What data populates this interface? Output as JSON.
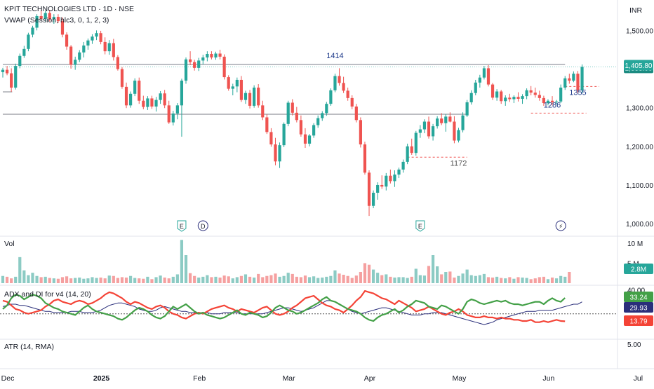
{
  "header": {
    "title": "KPIT TECHNOLOGIES LTD · 1D · NSE",
    "indicator": "VWAP (Session, hlc3, 0, 1, 2, 3)",
    "currency": "INR"
  },
  "panes": {
    "volume": "Vol",
    "adx": "ADX and DI for v4 (14, 20)",
    "atr": "ATR (14, RMA)"
  },
  "colors": {
    "up": "#26a69a",
    "down": "#ef5350",
    "up_vol": "#8ccbc4",
    "down_vol": "#f5a0a0",
    "adx_green": "#43a047",
    "adx_red": "#f44336",
    "adx_navy": "#2a2e7a",
    "level_line": "#787b86",
    "price_badge": "#26a69a"
  },
  "chart_data": {
    "type": "candlestick",
    "price_axis": {
      "ticks": [
        "1,500.00",
        "1,400.00",
        "1,300.00",
        "1,200.00",
        "1,100.00",
        "1,000.00"
      ],
      "tick_values": [
        1500,
        1400,
        1300,
        1200,
        1100,
        1000
      ],
      "ylim": [
        973,
        1575
      ]
    },
    "time_axis": {
      "labels": [
        "Dec",
        "2025",
        "Feb",
        "Mar",
        "Apr",
        "May",
        "Jun",
        "Jul"
      ],
      "label_index": [
        0,
        22,
        45,
        66,
        85,
        106,
        127,
        148
      ]
    },
    "last_price": "1,405.80",
    "second_price": "1,388.00",
    "candles": [
      [
        1392,
        1403,
        1378,
        1398
      ],
      [
        1398,
        1408,
        1384,
        1389
      ],
      [
        1389,
        1402,
        1341,
        1352
      ],
      [
        1352,
        1414,
        1347,
        1408
      ],
      [
        1408,
        1440,
        1402,
        1434
      ],
      [
        1434,
        1460,
        1429,
        1452
      ],
      [
        1452,
        1494,
        1446,
        1489
      ],
      [
        1489,
        1512,
        1482,
        1507
      ],
      [
        1507,
        1542,
        1500,
        1537
      ],
      [
        1537,
        1552,
        1528,
        1530
      ],
      [
        1530,
        1551,
        1523,
        1545
      ],
      [
        1545,
        1553,
        1523,
        1529
      ],
      [
        1529,
        1542,
        1517,
        1535
      ],
      [
        1535,
        1542,
        1519,
        1524
      ],
      [
        1524,
        1534,
        1482,
        1489
      ],
      [
        1489,
        1495,
        1450,
        1458
      ],
      [
        1458,
        1462,
        1401,
        1411
      ],
      [
        1411,
        1432,
        1398,
        1424
      ],
      [
        1424,
        1449,
        1418,
        1443
      ],
      [
        1443,
        1470,
        1430,
        1461
      ],
      [
        1461,
        1479,
        1450,
        1474
      ],
      [
        1474,
        1490,
        1465,
        1484
      ],
      [
        1484,
        1500,
        1475,
        1493
      ],
      [
        1493,
        1499,
        1464,
        1470
      ],
      [
        1470,
        1482,
        1438,
        1446
      ],
      [
        1446,
        1475,
        1437,
        1467
      ],
      [
        1467,
        1478,
        1422,
        1431
      ],
      [
        1431,
        1436,
        1396,
        1400
      ],
      [
        1400,
        1405,
        1349,
        1354
      ],
      [
        1354,
        1365,
        1299,
        1306
      ],
      [
        1306,
        1342,
        1300,
        1336
      ],
      [
        1336,
        1376,
        1330,
        1370
      ],
      [
        1370,
        1378,
        1310,
        1318
      ],
      [
        1318,
        1331,
        1296,
        1302
      ],
      [
        1302,
        1330,
        1294,
        1324
      ],
      [
        1324,
        1331,
        1297,
        1303
      ],
      [
        1303,
        1328,
        1290,
        1320
      ],
      [
        1320,
        1343,
        1310,
        1337
      ],
      [
        1337,
        1346,
        1299,
        1306
      ],
      [
        1306,
        1318,
        1258,
        1262
      ],
      [
        1262,
        1292,
        1254,
        1285
      ],
      [
        1285,
        1312,
        1270,
        1306
      ],
      [
        1306,
        1375,
        1225,
        1370
      ],
      [
        1370,
        1430,
        1362,
        1425
      ],
      [
        1425,
        1446,
        1410,
        1418
      ],
      [
        1418,
        1424,
        1396,
        1403
      ],
      [
        1403,
        1429,
        1395,
        1422
      ],
      [
        1422,
        1437,
        1412,
        1430
      ],
      [
        1430,
        1446,
        1420,
        1439
      ],
      [
        1439,
        1446,
        1425,
        1430
      ],
      [
        1430,
        1445,
        1424,
        1440
      ],
      [
        1440,
        1450,
        1425,
        1432
      ],
      [
        1432,
        1438,
        1373,
        1379
      ],
      [
        1379,
        1384,
        1344,
        1349
      ],
      [
        1349,
        1362,
        1332,
        1355
      ],
      [
        1355,
        1378,
        1340,
        1372
      ],
      [
        1372,
        1382,
        1315,
        1320
      ],
      [
        1320,
        1344,
        1310,
        1338
      ],
      [
        1338,
        1346,
        1298,
        1305
      ],
      [
        1305,
        1358,
        1300,
        1352
      ],
      [
        1352,
        1361,
        1300,
        1306
      ],
      [
        1306,
        1318,
        1268,
        1275
      ],
      [
        1275,
        1283,
        1232,
        1237
      ],
      [
        1237,
        1247,
        1199,
        1205
      ],
      [
        1205,
        1222,
        1151,
        1161
      ],
      [
        1161,
        1210,
        1144,
        1203
      ],
      [
        1203,
        1262,
        1198,
        1258
      ],
      [
        1258,
        1318,
        1252,
        1313
      ],
      [
        1313,
        1322,
        1280,
        1287
      ],
      [
        1287,
        1302,
        1262,
        1268
      ],
      [
        1268,
        1280,
        1225,
        1231
      ],
      [
        1231,
        1247,
        1196,
        1207
      ],
      [
        1207,
        1232,
        1200,
        1228
      ],
      [
        1228,
        1260,
        1222,
        1255
      ],
      [
        1255,
        1280,
        1248,
        1273
      ],
      [
        1273,
        1291,
        1266,
        1286
      ],
      [
        1286,
        1315,
        1279,
        1310
      ],
      [
        1310,
        1350,
        1305,
        1345
      ],
      [
        1345,
        1388,
        1340,
        1382
      ],
      [
        1382,
        1402,
        1357,
        1364
      ],
      [
        1364,
        1380,
        1338,
        1344
      ],
      [
        1344,
        1352,
        1318,
        1325
      ],
      [
        1325,
        1332,
        1296,
        1303
      ],
      [
        1303,
        1310,
        1262,
        1268
      ],
      [
        1268,
        1275,
        1197,
        1205
      ],
      [
        1205,
        1212,
        1127,
        1132
      ],
      [
        1132,
        1138,
        1020,
        1046
      ],
      [
        1046,
        1086,
        1040,
        1080
      ],
      [
        1080,
        1107,
        1062,
        1100
      ],
      [
        1100,
        1125,
        1090,
        1096
      ],
      [
        1096,
        1131,
        1086,
        1124
      ],
      [
        1124,
        1140,
        1104,
        1110
      ],
      [
        1110,
        1138,
        1095,
        1127
      ],
      [
        1127,
        1145,
        1118,
        1140
      ],
      [
        1140,
        1166,
        1132,
        1160
      ],
      [
        1160,
        1207,
        1154,
        1200
      ],
      [
        1200,
        1220,
        1178,
        1183
      ],
      [
        1183,
        1240,
        1176,
        1235
      ],
      [
        1235,
        1255,
        1222,
        1244
      ],
      [
        1244,
        1270,
        1234,
        1264
      ],
      [
        1264,
        1277,
        1220,
        1226
      ],
      [
        1226,
        1258,
        1215,
        1252
      ],
      [
        1252,
        1278,
        1246,
        1272
      ],
      [
        1272,
        1286,
        1255,
        1260
      ],
      [
        1260,
        1283,
        1238,
        1277
      ],
      [
        1277,
        1288,
        1262,
        1264
      ],
      [
        1264,
        1278,
        1208,
        1215
      ],
      [
        1215,
        1248,
        1210,
        1242
      ],
      [
        1242,
        1288,
        1236,
        1280
      ],
      [
        1280,
        1320,
        1276,
        1314
      ],
      [
        1314,
        1345,
        1308,
        1338
      ],
      [
        1338,
        1372,
        1332,
        1365
      ],
      [
        1365,
        1385,
        1352,
        1378
      ],
      [
        1378,
        1408,
        1373,
        1402
      ],
      [
        1402,
        1410,
        1355,
        1360
      ],
      [
        1360,
        1364,
        1320,
        1326
      ],
      [
        1326,
        1348,
        1318,
        1342
      ],
      [
        1342,
        1346,
        1310,
        1317
      ],
      [
        1317,
        1332,
        1305,
        1326
      ],
      [
        1326,
        1336,
        1315,
        1322
      ],
      [
        1322,
        1332,
        1312,
        1328
      ],
      [
        1328,
        1340,
        1316,
        1323
      ],
      [
        1323,
        1335,
        1310,
        1330
      ],
      [
        1330,
        1350,
        1322,
        1345
      ],
      [
        1345,
        1356,
        1332,
        1339
      ],
      [
        1339,
        1352,
        1326,
        1333
      ],
      [
        1333,
        1344,
        1318,
        1325
      ],
      [
        1325,
        1331,
        1305,
        1312
      ],
      [
        1312,
        1322,
        1306,
        1318
      ],
      [
        1318,
        1330,
        1306,
        1314
      ],
      [
        1314,
        1320,
        1308,
        1316
      ],
      [
        1316,
        1360,
        1312,
        1352
      ],
      [
        1352,
        1382,
        1346,
        1376
      ],
      [
        1376,
        1388,
        1362,
        1370
      ],
      [
        1370,
        1394,
        1366,
        1388
      ],
      [
        1388,
        1395,
        1338,
        1345
      ],
      [
        1345,
        1412,
        1338,
        1405.8
      ]
    ],
    "volume": {
      "axis_ticks": [
        "10 M",
        "5 M"
      ],
      "tick_values": [
        10,
        5
      ],
      "max": 11.2,
      "last": "2.8M",
      "values_m": [
        1.8,
        1.6,
        1.2,
        1.6,
        6.5,
        3.2,
        2.0,
        2.6,
        1.8,
        1.5,
        1.6,
        1.3,
        1.2,
        1.1,
        1.5,
        1.7,
        1.2,
        1.3,
        1.4,
        1.1,
        1.2,
        1.5,
        1.3,
        1.4,
        1.2,
        1.9,
        1.8,
        1.3,
        1.5,
        1.4,
        1.8,
        1.3,
        1.2,
        1.1,
        1.6,
        1.0,
        1.5,
        1.9,
        1.4,
        1.2,
        1.6,
        2.2,
        10.8,
        7.0,
        2.5,
        1.8,
        1.4,
        1.6,
        2.0,
        1.5,
        1.6,
        1.4,
        1.9,
        1.7,
        1.2,
        1.5,
        1.8,
        2.2,
        1.6,
        1.4,
        2.3,
        1.5,
        1.8,
        2.0,
        2.4,
        1.6,
        1.8,
        2.6,
        2.3,
        1.6,
        1.5,
        1.9,
        1.5,
        1.7,
        1.3,
        1.4,
        1.6,
        1.8,
        3.2,
        2.4,
        2.1,
        1.8,
        1.3,
        1.9,
        2.8,
        5.0,
        4.6,
        3.4,
        2.6,
        2.0,
        2.2,
        1.6,
        1.4,
        1.5,
        1.5,
        1.3,
        1.6,
        3.6,
        2.0,
        1.9,
        4.3,
        7.0,
        4.2,
        2.2,
        2.8,
        2.9,
        1.4,
        1.8,
        2.4,
        3.4,
        2.0,
        1.8,
        2.0,
        2.3,
        1.5,
        1.4,
        1.6,
        1.3,
        1.2,
        1.5,
        1.1,
        1.5,
        1.4,
        1.3,
        1.0,
        1.2,
        1.5,
        1.6,
        1.0,
        1.4,
        1.2,
        1.8,
        1.6,
        2.8
      ]
    },
    "adx": {
      "axis_ticks": [
        "40.00"
      ],
      "tick_values": [
        40
      ],
      "threshold": 20,
      "ylim": [
        0,
        42
      ],
      "badges": [
        "33.24",
        "29.93",
        "13.79"
      ],
      "di_plus": [
        24,
        27,
        33,
        36,
        35,
        32,
        34,
        36,
        35,
        33,
        29,
        27,
        25,
        24,
        22,
        21,
        20,
        19,
        22,
        25,
        27,
        24,
        22,
        21,
        20,
        19,
        18,
        16,
        15,
        17,
        20,
        23,
        25,
        24,
        22,
        19,
        17,
        16,
        18,
        22,
        26,
        24,
        26,
        28,
        25,
        22,
        20,
        21,
        19,
        18,
        17,
        16,
        17,
        19,
        21,
        23,
        20,
        19,
        21,
        20,
        19,
        17,
        18,
        21,
        25,
        27,
        25,
        23,
        22,
        20,
        21,
        23,
        25,
        27,
        29,
        32,
        34,
        31,
        30,
        28,
        26,
        24,
        23,
        22,
        20,
        17,
        15,
        14,
        17,
        19,
        20,
        22,
        24,
        21,
        23,
        26,
        28,
        31,
        30,
        29,
        26,
        25,
        24,
        27,
        26,
        24,
        22,
        20,
        24,
        30,
        32,
        31,
        29,
        28,
        29,
        30,
        31,
        30,
        31,
        29,
        28,
        28,
        27,
        28,
        29,
        30,
        30,
        28,
        31,
        33,
        31,
        30,
        33.24
      ],
      "di_minus": [
        31,
        30,
        27,
        24,
        23,
        21,
        20,
        21,
        22,
        23,
        26,
        28,
        31,
        32,
        30,
        29,
        28,
        30,
        31,
        30,
        28,
        29,
        31,
        33,
        36,
        38,
        37,
        35,
        33,
        30,
        28,
        30,
        29,
        27,
        25,
        24,
        26,
        27,
        25,
        22,
        20,
        19,
        17,
        16,
        18,
        20,
        21,
        20,
        22,
        24,
        25,
        26,
        27,
        25,
        24,
        22,
        24,
        23,
        22,
        21,
        23,
        25,
        26,
        23,
        20,
        19,
        20,
        22,
        25,
        27,
        30,
        33,
        34,
        35,
        32,
        29,
        27,
        26,
        24,
        23,
        21,
        24,
        27,
        31,
        34,
        39,
        38,
        37,
        35,
        33,
        32,
        30,
        28,
        31,
        29,
        27,
        25,
        22,
        23,
        24,
        26,
        24,
        22,
        20,
        19,
        21,
        22,
        24,
        22,
        19,
        18,
        17,
        17,
        18,
        17,
        17,
        16,
        17,
        16,
        16,
        15,
        15,
        14,
        14,
        15,
        13,
        13,
        14,
        13,
        14,
        15,
        14,
        13.79
      ],
      "adx": [
        26,
        27,
        28,
        28,
        27,
        27,
        26,
        25,
        24,
        23,
        22,
        22,
        21,
        21,
        21,
        21,
        22,
        22,
        22,
        21,
        21,
        21,
        22,
        23,
        25,
        27,
        28,
        29,
        29,
        28,
        27,
        26,
        24,
        23,
        22,
        22,
        23,
        25,
        26,
        25,
        24,
        23,
        22,
        22,
        21,
        21,
        21,
        21,
        21,
        20,
        20,
        20,
        21,
        21,
        21,
        21,
        20,
        20,
        20,
        20,
        20,
        20,
        21,
        22,
        23,
        24,
        25,
        25,
        24,
        23,
        22,
        23,
        24,
        25,
        27,
        29,
        31,
        31,
        30,
        28,
        26,
        24,
        22,
        21,
        20,
        21,
        22,
        23,
        24,
        25,
        25,
        24,
        23,
        22,
        21,
        20,
        19,
        19,
        19,
        20,
        20,
        21,
        21,
        21,
        20,
        19,
        18,
        17,
        16,
        15,
        14,
        13,
        12,
        11,
        12,
        13,
        15,
        16,
        17,
        18,
        19,
        20,
        21,
        22,
        22,
        22,
        23,
        23,
        23,
        23,
        24,
        25,
        26,
        27,
        28,
        28,
        29.93
      ]
    },
    "atr": {
      "axis_ticks": [
        "5.00"
      ],
      "tick_values": [
        5
      ]
    },
    "annotations": [
      {
        "label": "1414",
        "value": 1414
      },
      {
        "label": "1355",
        "value": 1355
      },
      {
        "label": "1286",
        "value": 1286
      },
      {
        "label": "1172",
        "value": 1172
      }
    ],
    "event_markers": [
      {
        "label": "E",
        "index": 42
      },
      {
        "label": "D",
        "index": 47
      },
      {
        "label": "E",
        "index": 98
      },
      {
        "label": "⚡",
        "index": 131
      }
    ]
  }
}
